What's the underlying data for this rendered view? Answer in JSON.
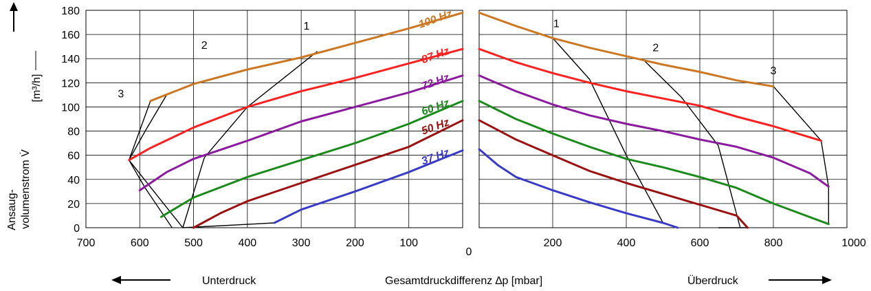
{
  "chart_data": {
    "type": "line",
    "xlabel": "Gesamtdruckdifferenz ∆p  [mbar]",
    "ylabel_line1": "Ansaug-",
    "ylabel_line2": "volumenstrom V̇",
    "ylabel_unit": "[m³/h]",
    "left_region_label": "Unterdruck",
    "right_region_label": "Überdruck",
    "y_ticks": [
      "0",
      "20",
      "40",
      "60",
      "80",
      "100",
      "120",
      "140",
      "160",
      "180"
    ],
    "left_x_ticks": [
      "700",
      "600",
      "500",
      "400",
      "300",
      "200",
      "100"
    ],
    "center_x_tick": "0",
    "right_x_ticks": [
      "200",
      "400",
      "600",
      "800",
      "1000"
    ],
    "ylim": [
      0,
      180
    ],
    "left_xlim": [
      700,
      0
    ],
    "right_xlim": [
      0,
      1000
    ],
    "grid": true,
    "series": [
      {
        "name": "100 Hz",
        "color": "#cc7722",
        "left": [
          [
            580,
            105
          ],
          [
            500,
            119
          ],
          [
            400,
            131
          ],
          [
            300,
            141
          ],
          [
            200,
            153
          ],
          [
            100,
            165
          ],
          [
            0,
            178
          ]
        ],
        "right": [
          [
            0,
            178
          ],
          [
            100,
            167
          ],
          [
            200,
            157
          ],
          [
            300,
            149
          ],
          [
            400,
            142
          ],
          [
            500,
            135
          ],
          [
            600,
            129
          ],
          [
            700,
            122
          ],
          [
            800,
            117
          ]
        ]
      },
      {
        "name": "87 Hz",
        "color": "#ff2020",
        "left": [
          [
            620,
            56
          ],
          [
            580,
            66
          ],
          [
            500,
            83
          ],
          [
            400,
            100
          ],
          [
            300,
            113
          ],
          [
            200,
            124
          ],
          [
            100,
            136
          ],
          [
            0,
            148
          ]
        ],
        "right": [
          [
            0,
            148
          ],
          [
            100,
            137
          ],
          [
            200,
            128
          ],
          [
            300,
            120
          ],
          [
            400,
            113
          ],
          [
            500,
            107
          ],
          [
            600,
            101
          ],
          [
            700,
            92
          ],
          [
            800,
            84
          ],
          [
            930,
            72
          ]
        ]
      },
      {
        "name": "72 Hz",
        "color": "#8b1a9f",
        "left": [
          [
            600,
            31
          ],
          [
            550,
            46
          ],
          [
            500,
            57
          ],
          [
            400,
            72
          ],
          [
            300,
            88
          ],
          [
            200,
            100
          ],
          [
            100,
            112
          ],
          [
            0,
            126
          ]
        ],
        "right": [
          [
            0,
            126
          ],
          [
            100,
            113
          ],
          [
            200,
            102
          ],
          [
            300,
            93
          ],
          [
            400,
            86
          ],
          [
            500,
            80
          ],
          [
            600,
            73
          ],
          [
            700,
            67
          ],
          [
            800,
            58
          ],
          [
            900,
            45
          ],
          [
            950,
            34
          ]
        ]
      },
      {
        "name": "60 Hz",
        "color": "#1a8a1a",
        "left": [
          [
            560,
            9
          ],
          [
            500,
            25
          ],
          [
            400,
            42
          ],
          [
            300,
            56
          ],
          [
            200,
            70
          ],
          [
            100,
            86
          ],
          [
            0,
            105
          ]
        ],
        "right": [
          [
            0,
            105
          ],
          [
            100,
            90
          ],
          [
            200,
            78
          ],
          [
            300,
            67
          ],
          [
            400,
            57
          ],
          [
            500,
            50
          ],
          [
            600,
            42
          ],
          [
            700,
            33
          ],
          [
            800,
            20
          ],
          [
            950,
            3
          ]
        ]
      },
      {
        "name": "50 Hz",
        "color": "#9b1010",
        "left": [
          [
            500,
            0
          ],
          [
            450,
            12
          ],
          [
            400,
            22
          ],
          [
            300,
            37
          ],
          [
            200,
            52
          ],
          [
            100,
            67
          ],
          [
            0,
            89
          ]
        ],
        "right": [
          [
            0,
            89
          ],
          [
            100,
            73
          ],
          [
            200,
            60
          ],
          [
            300,
            47
          ],
          [
            400,
            37
          ],
          [
            500,
            28
          ],
          [
            600,
            19
          ],
          [
            700,
            10
          ],
          [
            730,
            0
          ]
        ]
      },
      {
        "name": "37 Hz",
        "color": "#3a3ac8",
        "left": [
          [
            350,
            4
          ],
          [
            300,
            15
          ],
          [
            200,
            30
          ],
          [
            100,
            46
          ],
          [
            0,
            64
          ]
        ],
        "right": [
          [
            0,
            65
          ],
          [
            50,
            52
          ],
          [
            100,
            42
          ],
          [
            200,
            31
          ],
          [
            300,
            21
          ],
          [
            400,
            12
          ],
          [
            500,
            4
          ],
          [
            540,
            0
          ]
        ]
      }
    ],
    "boundaries": [
      {
        "name": "1",
        "left": [
          [
            270,
            146
          ],
          [
            400,
            100
          ],
          [
            480,
            58
          ],
          [
            520,
            0
          ]
        ],
        "right": [
          [
            200,
            157
          ],
          [
            300,
            123
          ],
          [
            400,
            60
          ],
          [
            500,
            4
          ]
        ]
      },
      {
        "name": "2",
        "left": [
          [
            550,
            110
          ],
          [
            590,
            80
          ],
          [
            620,
            56
          ],
          [
            520,
            0
          ]
        ],
        "right": [
          [
            450,
            138
          ],
          [
            550,
            108
          ],
          [
            650,
            68
          ],
          [
            710,
            0
          ]
        ]
      },
      {
        "name": "3",
        "left": [
          [
            580,
            105
          ],
          [
            620,
            56
          ],
          [
            590,
            33
          ],
          [
            540,
            0
          ]
        ],
        "right": [
          [
            800,
            117
          ],
          [
            930,
            72
          ],
          [
            950,
            34
          ],
          [
            950,
            3
          ]
        ]
      },
      {
        "name": "",
        "left": [
          [
            520,
            0
          ],
          [
            350,
            4
          ]
        ],
        "right": [
          [
            650,
            0
          ],
          [
            730,
            0
          ]
        ]
      }
    ],
    "annotations": [
      {
        "text": "1",
        "side": "left",
        "x": 290,
        "y": 164
      },
      {
        "text": "2",
        "side": "left",
        "x": 480,
        "y": 148
      },
      {
        "text": "3",
        "side": "left",
        "x": 635,
        "y": 108
      },
      {
        "text": "1",
        "side": "right",
        "x": 210,
        "y": 166
      },
      {
        "text": "2",
        "side": "right",
        "x": 480,
        "y": 146
      },
      {
        "text": "3",
        "side": "right",
        "x": 800,
        "y": 127
      }
    ]
  }
}
